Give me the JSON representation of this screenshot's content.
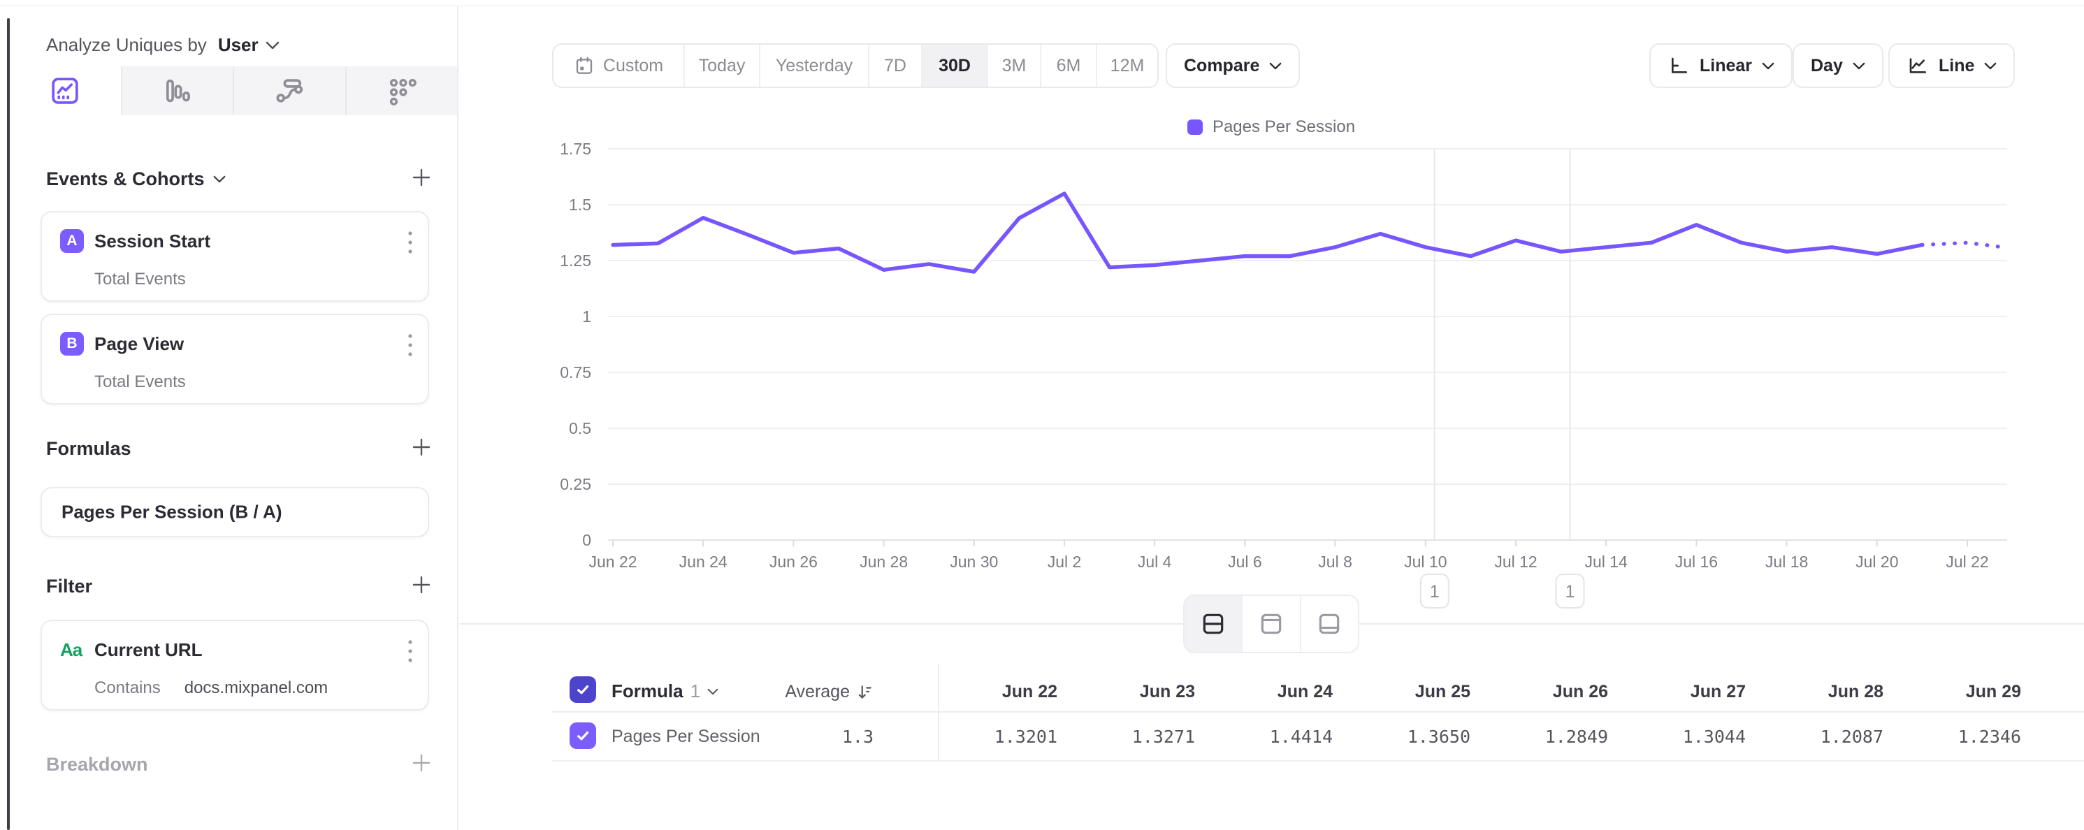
{
  "header": {
    "analyze_label": "Analyze Uniques by",
    "analyze_value": "User"
  },
  "sidebar": {
    "tabs": [
      "insights-tab",
      "bars-tab",
      "flows-tab",
      "retention-tab"
    ],
    "events": {
      "title": "Events & Cohorts",
      "items": [
        {
          "letter": "A",
          "name": "Session Start",
          "measure": "Total Events"
        },
        {
          "letter": "B",
          "name": "Page View",
          "measure": "Total Events"
        }
      ]
    },
    "formulas": {
      "title": "Formulas",
      "formula": "Pages Per Session (B / A)"
    },
    "filter": {
      "title": "Filter",
      "icon": "Aa",
      "name": "Current URL",
      "operator": "Contains",
      "value": "docs.mixpanel.com"
    },
    "breakdown": {
      "title": "Breakdown"
    }
  },
  "toolbar": {
    "date_ranges": [
      "Custom",
      "Today",
      "Yesterday",
      "7D",
      "30D",
      "3M",
      "6M",
      "12M"
    ],
    "selected_range": "30D",
    "compare_label": "Compare",
    "scale_label": "Linear",
    "interval_label": "Day",
    "chart_type_label": "Line"
  },
  "chart_data": {
    "type": "line",
    "title": "",
    "legend": [
      {
        "label": "Pages Per Session",
        "color": "#7856FF"
      }
    ],
    "x": [
      "Jun 22",
      "Jun 23",
      "Jun 24",
      "Jun 25",
      "Jun 26",
      "Jun 27",
      "Jun 28",
      "Jun 29",
      "Jun 30",
      "Jul 1",
      "Jul 2",
      "Jul 3",
      "Jul 4",
      "Jul 5",
      "Jul 6",
      "Jul 7",
      "Jul 8",
      "Jul 9",
      "Jul 10",
      "Jul 11",
      "Jul 12",
      "Jul 13",
      "Jul 14",
      "Jul 15",
      "Jul 16",
      "Jul 17",
      "Jul 18",
      "Jul 19",
      "Jul 20",
      "Jul 21",
      "Jul 22"
    ],
    "x_tick_every": 2,
    "series": [
      {
        "name": "Pages Per Session",
        "values": [
          1.3201,
          1.3271,
          1.4414,
          1.365,
          1.2849,
          1.3044,
          1.2087,
          1.2346,
          1.2,
          1.44,
          1.55,
          1.22,
          1.23,
          1.25,
          1.27,
          1.27,
          1.31,
          1.37,
          1.31,
          1.27,
          1.34,
          1.29,
          1.31,
          1.33,
          1.41,
          1.33,
          1.29,
          1.31,
          1.28,
          1.32,
          1.33
        ]
      }
    ],
    "dotted_tail": {
      "from_index": 29,
      "edge_value": 1.31
    },
    "ylim": [
      0,
      1.75
    ],
    "y_tick_values": [
      1.75,
      1.5,
      1.25,
      1,
      0.75,
      0.5,
      0.25,
      0
    ],
    "y_tick_labels": [
      "1.75",
      "1.5",
      "1.25",
      "1",
      "0.75",
      "0.5",
      "0.25",
      "0"
    ],
    "grid": true,
    "legend_position": "top-center",
    "annotations": [
      {
        "day_offset": 18.2,
        "label": "1"
      },
      {
        "day_offset": 21.2,
        "label": "1"
      }
    ]
  },
  "table": {
    "formula_label": "Formula",
    "formula_index": "1",
    "average_label": "Average",
    "columns": [
      "Jun 22",
      "Jun 23",
      "Jun 24",
      "Jun 25",
      "Jun 26",
      "Jun 27",
      "Jun 28",
      "Jun 29"
    ],
    "rows": [
      {
        "name": "Pages Per Session",
        "average": "1.3",
        "values": [
          "1.3201",
          "1.3271",
          "1.4414",
          "1.3650",
          "1.2849",
          "1.3044",
          "1.2087",
          "1.2346"
        ]
      }
    ]
  },
  "colors": {
    "accent": "#7856FF",
    "checkbox_header": "#4C44CC",
    "checkbox_row": "#7C5CFC",
    "filter_icon_green": "#16A163",
    "grid_line": "#efeff1",
    "text_dark": "#2b2b33",
    "text_gray": "#8b8b93"
  }
}
